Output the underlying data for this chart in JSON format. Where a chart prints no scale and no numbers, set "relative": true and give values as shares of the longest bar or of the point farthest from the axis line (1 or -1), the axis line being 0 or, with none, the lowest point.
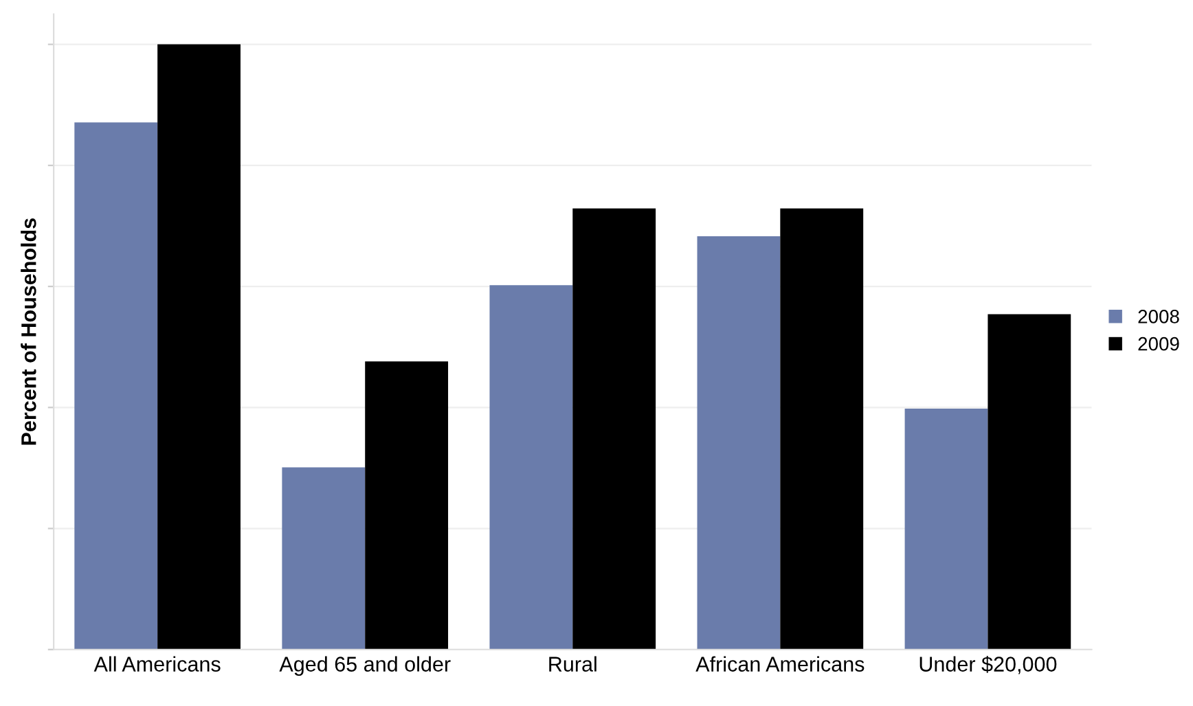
{
  "chart_data": {
    "type": "bar",
    "relative": true,
    "ylabel": "Percent of Households",
    "categories": [
      "All Americans",
      "Aged 65 and older",
      "Rural",
      "African Americans",
      "Under $20,000"
    ],
    "series": [
      {
        "name": "2008",
        "color": "#6a7cab",
        "values": [
          0.871,
          0.301,
          0.602,
          0.683,
          0.398
        ]
      },
      {
        "name": "2009",
        "color": "#000000",
        "values": [
          1.0,
          0.476,
          0.729,
          0.729,
          0.554
        ]
      }
    ],
    "grid": "y",
    "legend": "right"
  }
}
